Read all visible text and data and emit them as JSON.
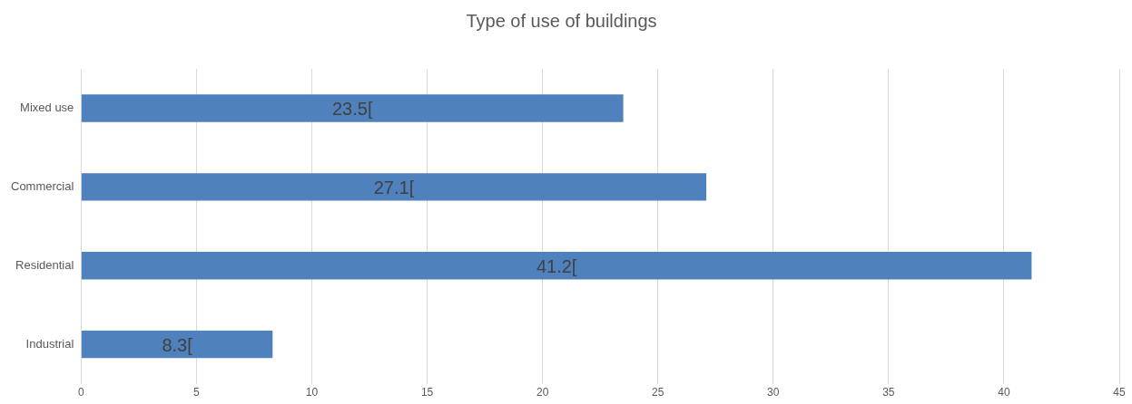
{
  "chart_data": {
    "type": "bar",
    "orientation": "horizontal",
    "title": "Type of use of buildings",
    "categories": [
      "Mixed use",
      "Commercial",
      "Residential",
      "Industrial"
    ],
    "values": [
      23.5,
      27.1,
      41.2,
      8.3
    ],
    "value_labels": [
      "23.5[",
      "27.1[",
      "41.2[",
      "8.3["
    ],
    "color": "#4f81bd",
    "xlim": [
      0,
      45
    ],
    "xticks": [
      0,
      5,
      10,
      15,
      20,
      25,
      30,
      35,
      40,
      45
    ],
    "grid": "x",
    "legend": false
  }
}
